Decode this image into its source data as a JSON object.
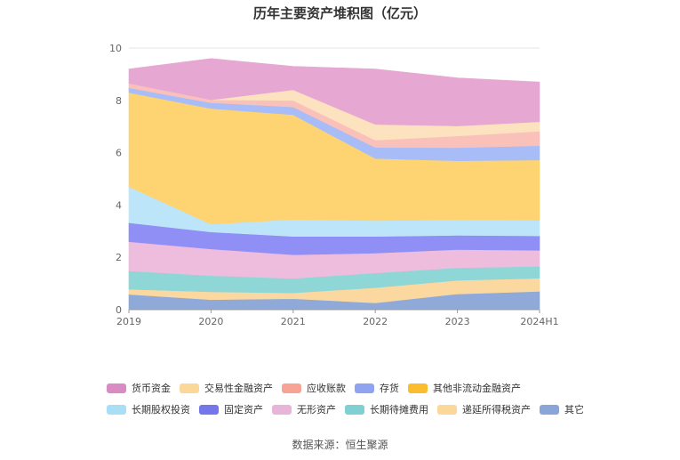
{
  "chart_data": {
    "type": "area",
    "stacked": true,
    "title": "历年主要资产堆积图（亿元）",
    "x": [
      "2019",
      "2020",
      "2021",
      "2022",
      "2023",
      "2024H1"
    ],
    "yticks": [
      0,
      2,
      4,
      6,
      8,
      10
    ],
    "ylim": [
      0,
      10
    ],
    "xlabel": "",
    "ylabel": "",
    "grid": true,
    "series": [
      {
        "name": "其它",
        "color": "#8fa9d8",
        "values": [
          0.58,
          0.38,
          0.42,
          0.26,
          0.6,
          0.7
        ]
      },
      {
        "name": "递延所得税资产",
        "color": "#fad8a0",
        "values": [
          0.2,
          0.3,
          0.22,
          0.58,
          0.52,
          0.5
        ]
      },
      {
        "name": "长期待摊费用",
        "color": "#8fd6d6",
        "values": [
          0.7,
          0.62,
          0.55,
          0.56,
          0.48,
          0.45
        ]
      },
      {
        "name": "无形资产",
        "color": "#eebcdc",
        "values": [
          1.12,
          1.02,
          0.91,
          0.76,
          0.7,
          0.62
        ]
      },
      {
        "name": "固定资产",
        "color": "#8f8ff5",
        "values": [
          0.72,
          0.65,
          0.7,
          0.64,
          0.54,
          0.55
        ]
      },
      {
        "name": "长期股权投资",
        "color": "#bde5fa",
        "values": [
          1.38,
          0.3,
          0.65,
          0.6,
          0.6,
          0.6
        ]
      },
      {
        "name": "其他非流动金融资产",
        "color": "#fdd471",
        "values": [
          3.6,
          4.42,
          4.0,
          2.38,
          2.25,
          2.3
        ]
      },
      {
        "name": "存货",
        "color": "#a8bcf8",
        "values": [
          0.18,
          0.22,
          0.3,
          0.42,
          0.5,
          0.55
        ]
      },
      {
        "name": "应收账款",
        "color": "#fac1bb",
        "values": [
          0.17,
          0.11,
          0.25,
          0.28,
          0.45,
          0.55
        ]
      },
      {
        "name": "交易性金融资产",
        "color": "#fde2bf",
        "values": [
          0.0,
          0.0,
          0.4,
          0.6,
          0.38,
          0.36
        ]
      },
      {
        "name": "货币资金",
        "color": "#e6a8d2",
        "values": [
          0.55,
          1.58,
          0.9,
          2.12,
          1.84,
          1.52
        ]
      }
    ]
  },
  "legend": {
    "row1": [
      {
        "label": "货币资金",
        "color": "#d98cc4"
      },
      {
        "label": "交易性金融资产",
        "color": "#fcd79a"
      },
      {
        "label": "应收账款",
        "color": "#f7a396"
      },
      {
        "label": "存货",
        "color": "#8fa3f0"
      },
      {
        "label": "其他非流动金融资产",
        "color": "#fbbd2e"
      }
    ],
    "row2": [
      {
        "label": "长期股权投资",
        "color": "#a9def7"
      },
      {
        "label": "固定资产",
        "color": "#7476ea"
      },
      {
        "label": "无形资产",
        "color": "#e7b5d8"
      },
      {
        "label": "长期待摊费用",
        "color": "#7fd0d2"
      },
      {
        "label": "递延所得税资产",
        "color": "#fcd79a"
      },
      {
        "label": "其它",
        "color": "#8aa6d8"
      }
    ]
  },
  "source": "数据来源：恒生聚源"
}
